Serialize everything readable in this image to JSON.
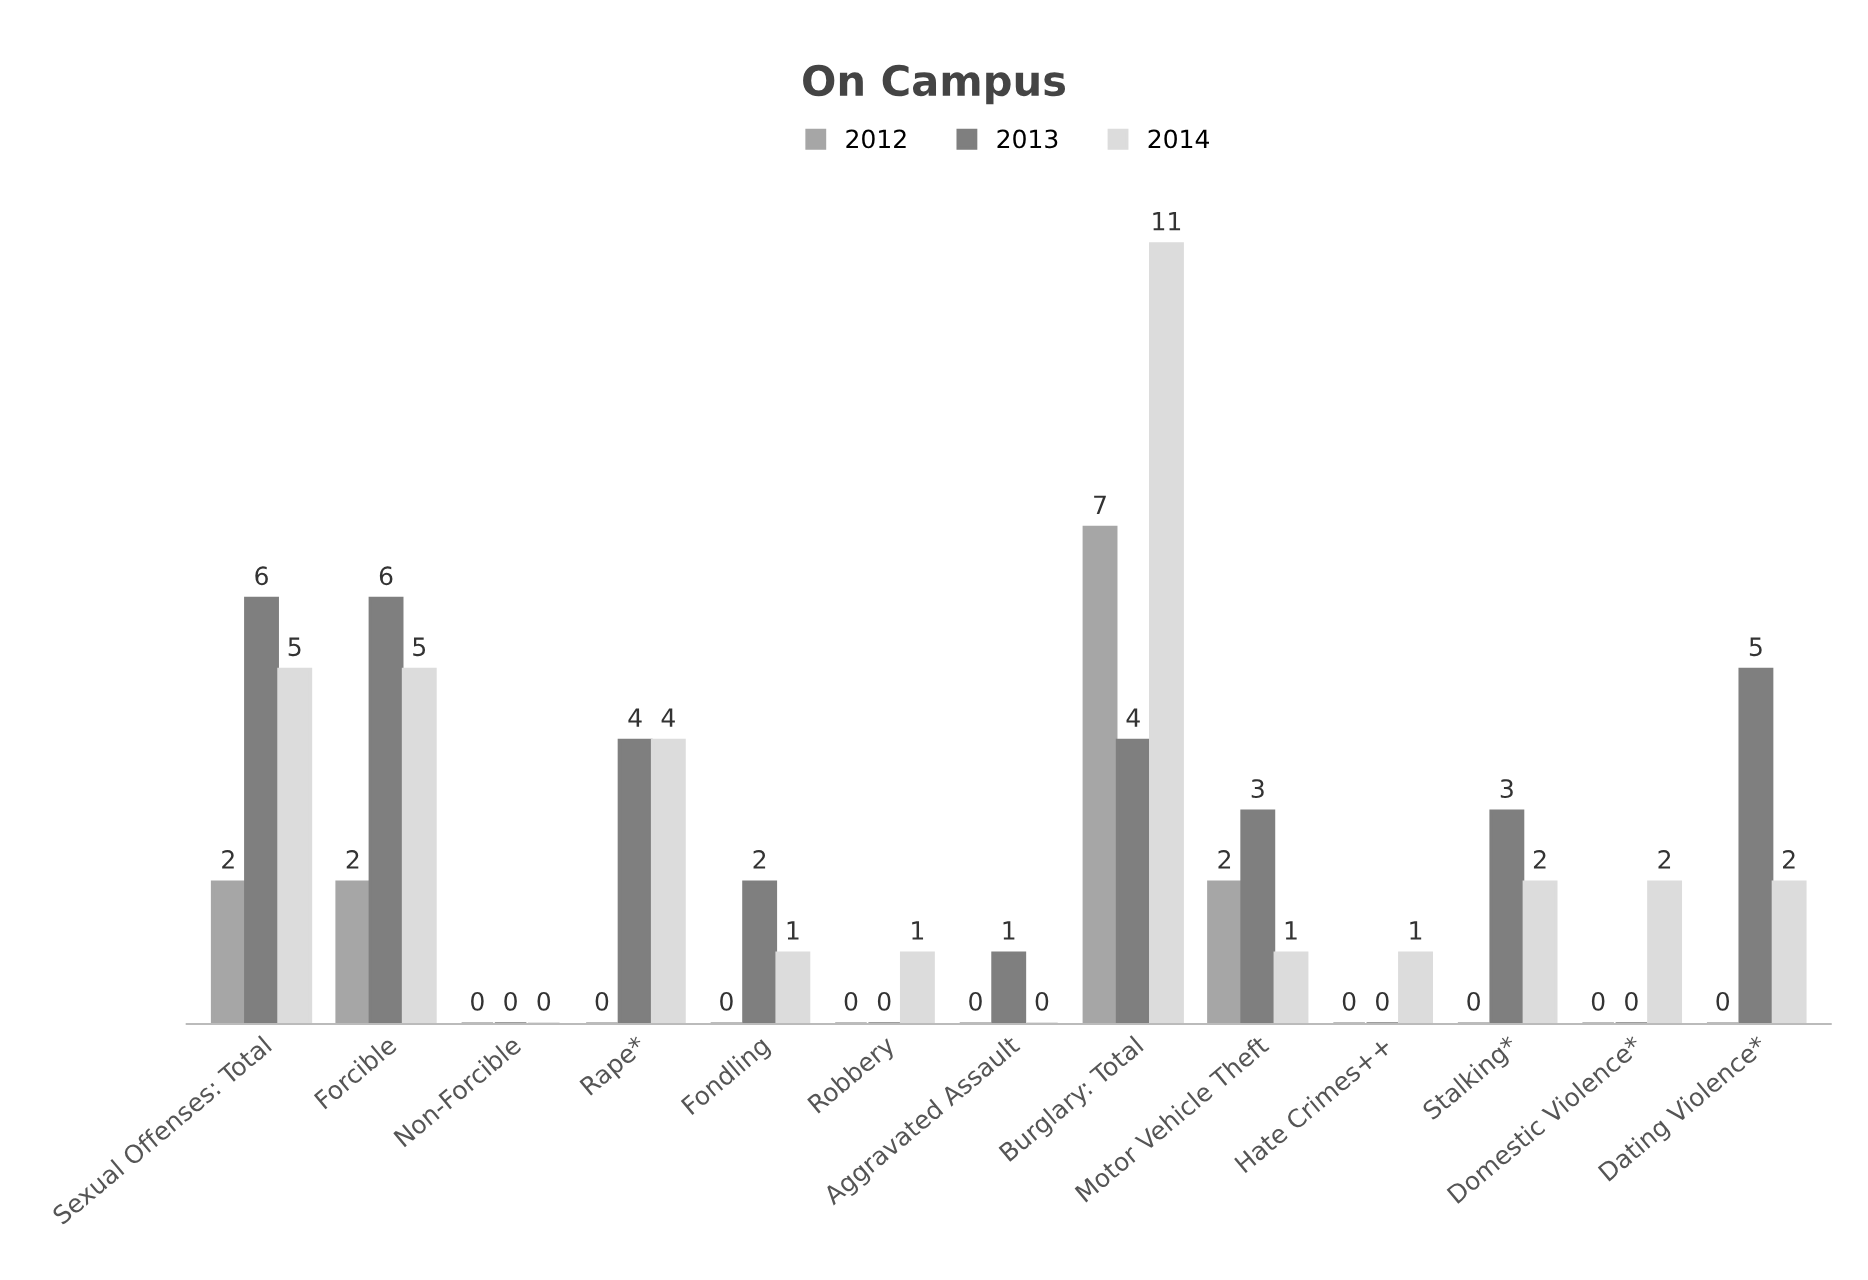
{
  "chart_data": {
    "type": "bar",
    "title": "On Campus",
    "categories": [
      "Sexual Offenses: Total",
      "Forcible",
      "Non-Forcible",
      "Rape*",
      "Fondling",
      "Robbery",
      "Aggravated Assault",
      "Burglary: Total",
      "Motor Vehicle Theft",
      "Hate Crimes++",
      "Stalking*",
      "Domestic Violence*",
      "Dating Violence*"
    ],
    "series": [
      {
        "name": "2012",
        "color": "#a6a6a6",
        "values": [
          2,
          2,
          0,
          0,
          0,
          0,
          0,
          7,
          2,
          0,
          0,
          0,
          0
        ]
      },
      {
        "name": "2013",
        "color": "#7f7f7f",
        "values": [
          6,
          6,
          0,
          4,
          2,
          0,
          1,
          4,
          3,
          0,
          3,
          0,
          5
        ]
      },
      {
        "name": "2014",
        "color": "#dcdcdc",
        "values": [
          5,
          5,
          0,
          4,
          1,
          1,
          0,
          11,
          1,
          1,
          2,
          2,
          2
        ]
      }
    ],
    "tick_labels": "x",
    "data_labels": true,
    "legend": "top",
    "grid": false
  }
}
